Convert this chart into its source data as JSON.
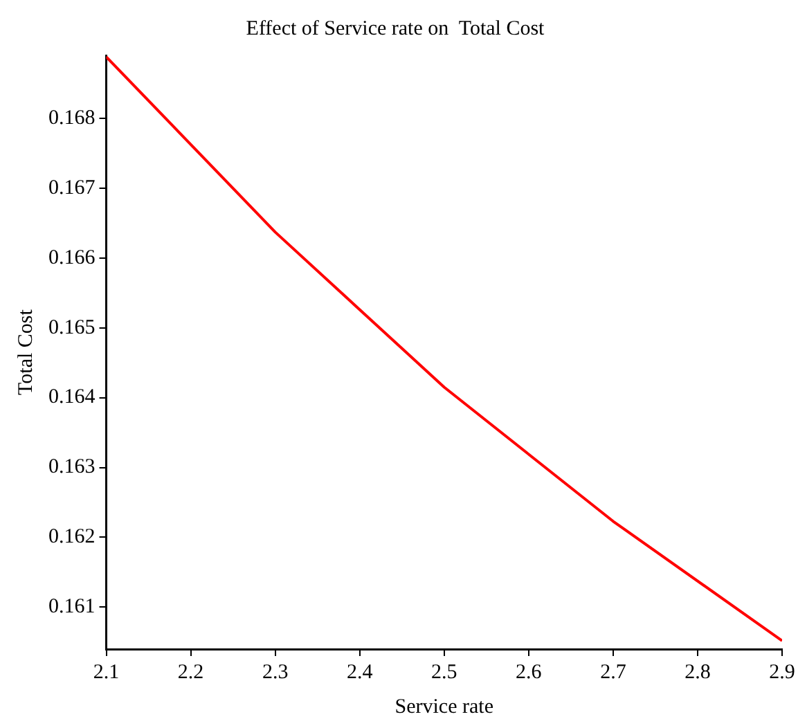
{
  "chart_data": {
    "type": "line",
    "title": "Effect of Service rate on  Total Cost",
    "xlabel": "Service rate",
    "ylabel": "Total Cost",
    "x": [
      2.1,
      2.3,
      2.5,
      2.7,
      2.9
    ],
    "series": [
      {
        "color": "#ff0000",
        "values": [
          0.16888,
          0.16637,
          0.16415,
          0.16223,
          0.16052
        ]
      }
    ],
    "xlim": [
      2.1,
      2.9
    ],
    "xticks": [
      2.1,
      2.2,
      2.3,
      2.4,
      2.5,
      2.6,
      2.7,
      2.8,
      2.9
    ],
    "ylim": [
      0.1604,
      0.1689
    ],
    "yticks": [
      0.161,
      0.162,
      0.163,
      0.164,
      0.165,
      0.166,
      0.167,
      0.168
    ],
    "grid": false,
    "legend": false,
    "marker": "none",
    "line_style": "solid"
  }
}
